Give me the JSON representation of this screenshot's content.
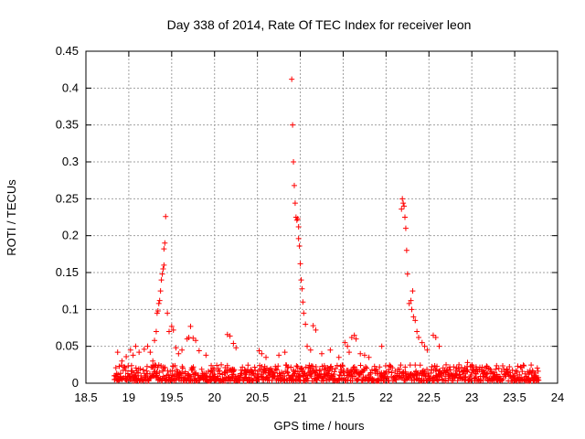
{
  "chart_data": {
    "type": "scatter",
    "title": "Day 338 of 2014, Rate Of TEC Index for receiver leon",
    "xlabel": "GPS time / hours",
    "ylabel": "ROTI / TECUs",
    "xlim": [
      18.5,
      24
    ],
    "ylim": [
      0,
      0.45
    ],
    "xticks": [
      "18.5",
      "19",
      "19.5",
      "20",
      "20.5",
      "21",
      "21.5",
      "22",
      "22.5",
      "23",
      "23.5",
      "24"
    ],
    "yticks": [
      "0",
      "0.05",
      "0.1",
      "0.15",
      "0.2",
      "0.25",
      "0.3",
      "0.35",
      "0.4",
      "0.45"
    ],
    "grid": true,
    "marker": "+",
    "series": [
      {
        "name": "ROTI",
        "color": "#ff0000",
        "baseline": {
          "x_start": 18.83,
          "x_end": 23.78,
          "min": 0.003,
          "max": 0.025
        },
        "points": [
          [
            18.87,
            0.042
          ],
          [
            18.92,
            0.03
          ],
          [
            18.97,
            0.036
          ],
          [
            19.02,
            0.045
          ],
          [
            19.05,
            0.038
          ],
          [
            19.08,
            0.05
          ],
          [
            19.12,
            0.042
          ],
          [
            19.18,
            0.046
          ],
          [
            19.22,
            0.05
          ],
          [
            19.25,
            0.042
          ],
          [
            19.28,
            0.03
          ],
          [
            19.3,
            0.058
          ],
          [
            19.32,
            0.07
          ],
          [
            19.33,
            0.095
          ],
          [
            19.34,
            0.098
          ],
          [
            19.35,
            0.108
          ],
          [
            19.36,
            0.112
          ],
          [
            19.37,
            0.125
          ],
          [
            19.38,
            0.14
          ],
          [
            19.39,
            0.148
          ],
          [
            19.4,
            0.155
          ],
          [
            19.41,
            0.16
          ],
          [
            19.41,
            0.182
          ],
          [
            19.42,
            0.19
          ],
          [
            19.43,
            0.226
          ],
          [
            19.45,
            0.095
          ],
          [
            19.47,
            0.07
          ],
          [
            19.5,
            0.077
          ],
          [
            19.52,
            0.072
          ],
          [
            19.55,
            0.048
          ],
          [
            19.58,
            0.04
          ],
          [
            19.62,
            0.045
          ],
          [
            19.68,
            0.06
          ],
          [
            19.7,
            0.062
          ],
          [
            19.72,
            0.077
          ],
          [
            19.75,
            0.061
          ],
          [
            19.78,
            0.058
          ],
          [
            19.82,
            0.044
          ],
          [
            19.9,
            0.038
          ],
          [
            20.15,
            0.066
          ],
          [
            20.18,
            0.064
          ],
          [
            20.22,
            0.054
          ],
          [
            20.25,
            0.048
          ],
          [
            20.52,
            0.044
          ],
          [
            20.55,
            0.04
          ],
          [
            20.6,
            0.035
          ],
          [
            20.75,
            0.038
          ],
          [
            20.82,
            0.042
          ],
          [
            20.9,
            0.412
          ],
          [
            20.91,
            0.35
          ],
          [
            20.92,
            0.3
          ],
          [
            20.93,
            0.268
          ],
          [
            20.94,
            0.244
          ],
          [
            20.95,
            0.225
          ],
          [
            20.96,
            0.221
          ],
          [
            20.97,
            0.223
          ],
          [
            20.98,
            0.212
          ],
          [
            20.98,
            0.196
          ],
          [
            20.99,
            0.186
          ],
          [
            21.0,
            0.162
          ],
          [
            21.01,
            0.14
          ],
          [
            21.02,
            0.128
          ],
          [
            21.03,
            0.11
          ],
          [
            21.04,
            0.095
          ],
          [
            21.06,
            0.08
          ],
          [
            21.08,
            0.05
          ],
          [
            21.12,
            0.045
          ],
          [
            21.15,
            0.078
          ],
          [
            21.18,
            0.072
          ],
          [
            21.25,
            0.04
          ],
          [
            21.35,
            0.045
          ],
          [
            21.45,
            0.035
          ],
          [
            21.52,
            0.055
          ],
          [
            21.55,
            0.05
          ],
          [
            21.57,
            0.042
          ],
          [
            21.6,
            0.062
          ],
          [
            21.63,
            0.065
          ],
          [
            21.65,
            0.06
          ],
          [
            21.7,
            0.04
          ],
          [
            21.75,
            0.038
          ],
          [
            21.8,
            0.035
          ],
          [
            21.95,
            0.05
          ],
          [
            22.18,
            0.236
          ],
          [
            22.19,
            0.25
          ],
          [
            22.2,
            0.244
          ],
          [
            22.21,
            0.24
          ],
          [
            22.22,
            0.225
          ],
          [
            22.23,
            0.21
          ],
          [
            22.24,
            0.18
          ],
          [
            22.25,
            0.148
          ],
          [
            22.27,
            0.108
          ],
          [
            22.29,
            0.112
          ],
          [
            22.31,
            0.125
          ],
          [
            22.3,
            0.1
          ],
          [
            22.32,
            0.09
          ],
          [
            22.34,
            0.085
          ],
          [
            22.36,
            0.07
          ],
          [
            22.38,
            0.062
          ],
          [
            22.42,
            0.055
          ],
          [
            22.45,
            0.05
          ],
          [
            22.48,
            0.045
          ],
          [
            22.55,
            0.065
          ],
          [
            22.58,
            0.062
          ],
          [
            22.62,
            0.05
          ],
          [
            22.7,
            0.025
          ],
          [
            22.85,
            0.025
          ],
          [
            22.95,
            0.028
          ],
          [
            23.05,
            0.022
          ],
          [
            23.2,
            0.02
          ]
        ]
      }
    ]
  }
}
